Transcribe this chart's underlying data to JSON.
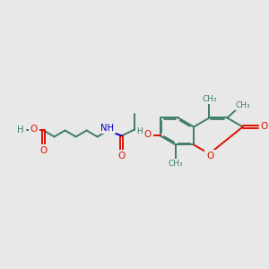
{
  "bg_color": "#e8e8e8",
  "bond_color": "#3d7a6a",
  "O_color": "#dd1100",
  "N_color": "#0000cc",
  "bond_width": 1.4,
  "figsize": [
    3.0,
    3.0
  ],
  "dpi": 100,
  "xlim": [
    0,
    10
  ],
  "ylim": [
    2,
    8
  ]
}
